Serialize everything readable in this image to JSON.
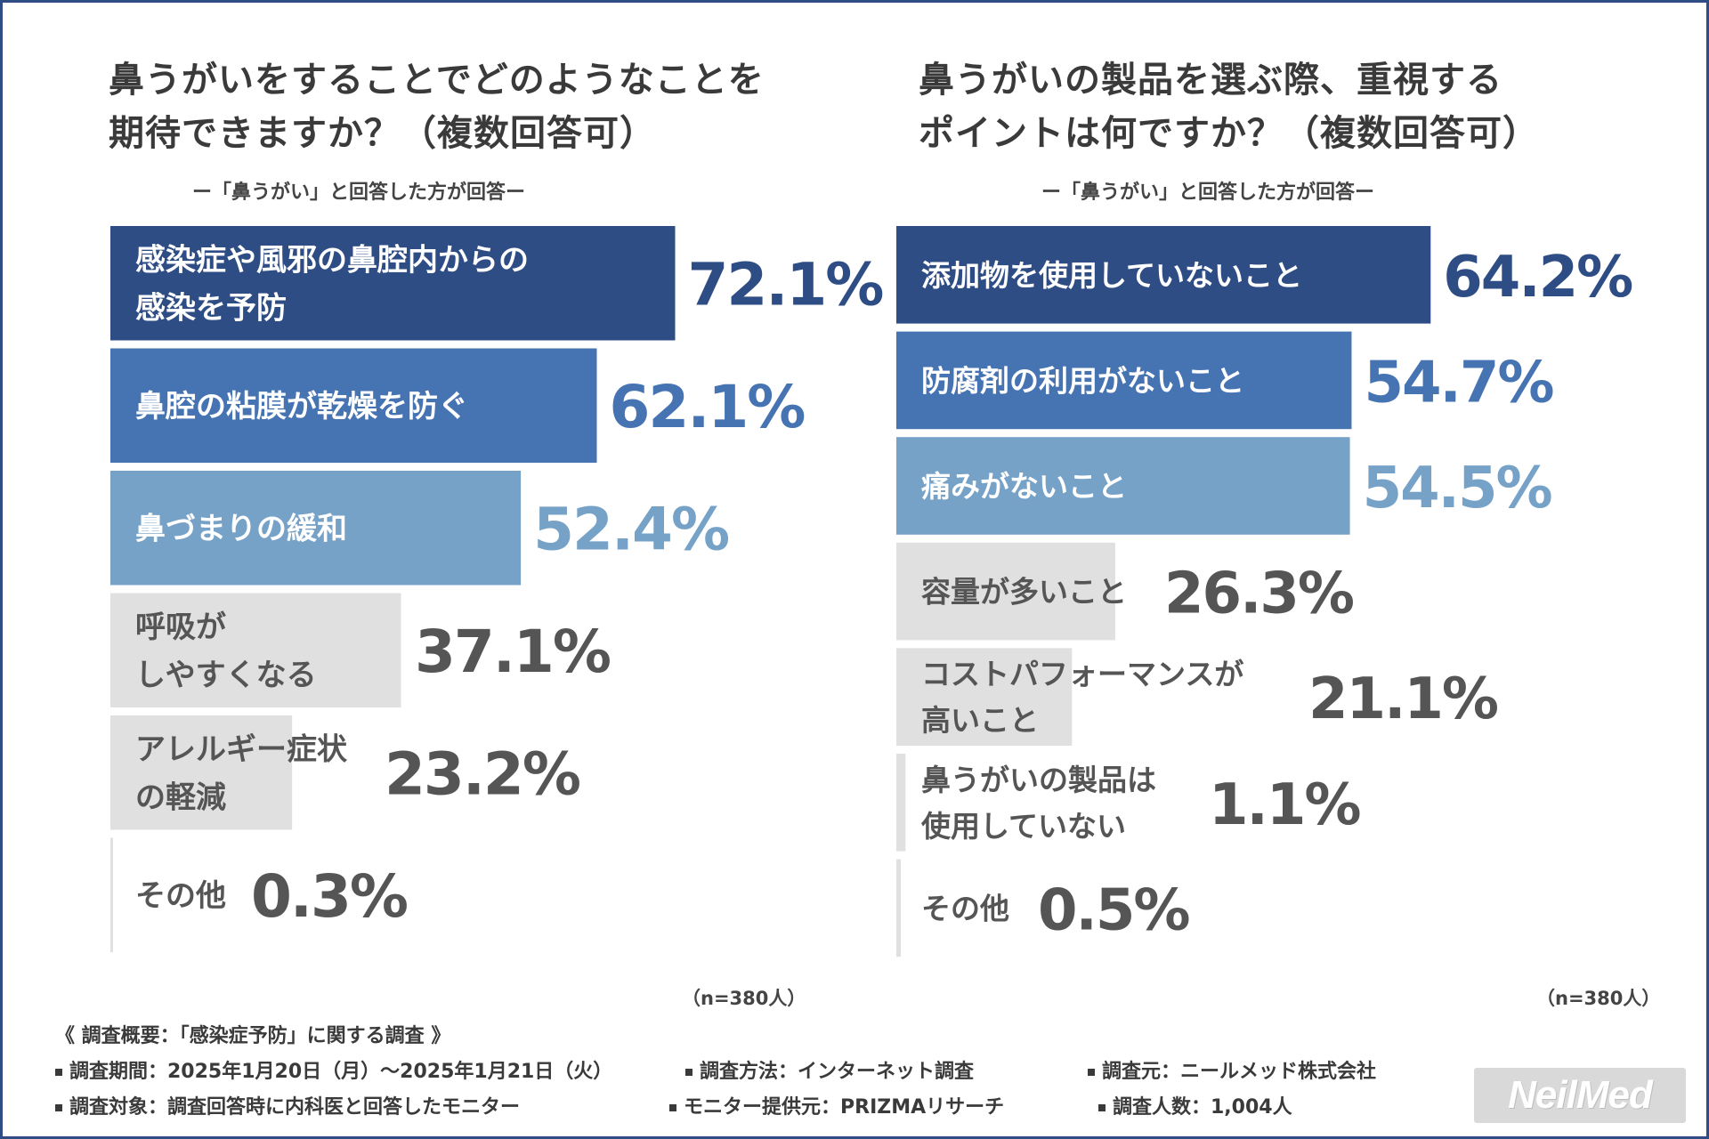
{
  "left": {
    "title": "鼻うがいをすることでどのようなことを\n期待できますか？（複数回答可）",
    "subtitle": "ー「鼻うがい」と回答した方が回答ー",
    "n_label": "（n=380人）"
  },
  "right": {
    "title": "鼻うがいの製品を選ぶ際、重視する\nポイントは何ですか？（複数回答可）",
    "subtitle": "ー「鼻うがい」と回答した方が回答ー",
    "n_label": "（n=380人）"
  },
  "footer": {
    "survey_title": "《 調査概要：「感染症予防」に関する調査 》",
    "items": [
      "調査期間：2025年1月20日（月）～2025年1月21日（火）",
      "調査方法：インターネット調査",
      "調査元：ニールメッド株式会社",
      "調査対象：調査回答時に内科医と回答したモニター",
      "モニター提供元：PRIZMAリサーチ",
      "調査人数：1,004人"
    ],
    "logo": "NeilMed"
  },
  "colors": {
    "dark_blue": "#2e4d85",
    "mid_blue": "#4673b2",
    "light_blue": "#76a2c8",
    "gray_bar": "#e0e0e0",
    "gray_text": "#555555",
    "border": "#2f4d85"
  },
  "chart_data": [
    {
      "type": "bar",
      "orientation": "horizontal",
      "title": "鼻うがいをすることでどのようなことを期待できますか？（複数回答可）",
      "subtitle": "ー「鼻うがい」と回答した方が回答ー",
      "unit": "%",
      "xlim": [
        0,
        100
      ],
      "categories": [
        "感染症や風邪の鼻腔内からの\n感染を予防",
        "鼻腔の粘膜が乾燥を防ぐ",
        "鼻づまりの緩和",
        "呼吸が\nしやすくなる",
        "アレルギー症状\nの軽減",
        "その他"
      ],
      "values": [
        72.1,
        62.1,
        52.4,
        37.1,
        23.2,
        0.3
      ],
      "labels": [
        "72.1%",
        "62.1%",
        "52.4%",
        "37.1%",
        "23.2%",
        "0.3%"
      ],
      "colors": [
        "#2e4d85",
        "#4673b2",
        "#76a2c8",
        "#e0e0e0",
        "#e0e0e0",
        "#e0e0e0"
      ],
      "n": "（n=380人）"
    },
    {
      "type": "bar",
      "orientation": "horizontal",
      "title": "鼻うがいの製品を選ぶ際、重視するポイントは何ですか？（複数回答可）",
      "subtitle": "ー「鼻うがい」と回答した方が回答ー",
      "unit": "%",
      "xlim": [
        0,
        100
      ],
      "categories": [
        "添加物を使用していないこと",
        "防腐剤の利用がないこと",
        "痛みがないこと",
        "容量が多いこと",
        "コストパフォーマンスが\n高いこと",
        "鼻うがいの製品は\n使用していない",
        "その他"
      ],
      "values": [
        64.2,
        54.7,
        54.5,
        26.3,
        21.1,
        1.1,
        0.5
      ],
      "labels": [
        "64.2%",
        "54.7%",
        "54.5%",
        "26.3%",
        "21.1%",
        "1.1%",
        "0.5%"
      ],
      "colors": [
        "#2e4d85",
        "#4673b2",
        "#76a2c8",
        "#e0e0e0",
        "#e0e0e0",
        "#e0e0e0",
        "#e0e0e0"
      ],
      "n": "（n=380人）"
    }
  ]
}
